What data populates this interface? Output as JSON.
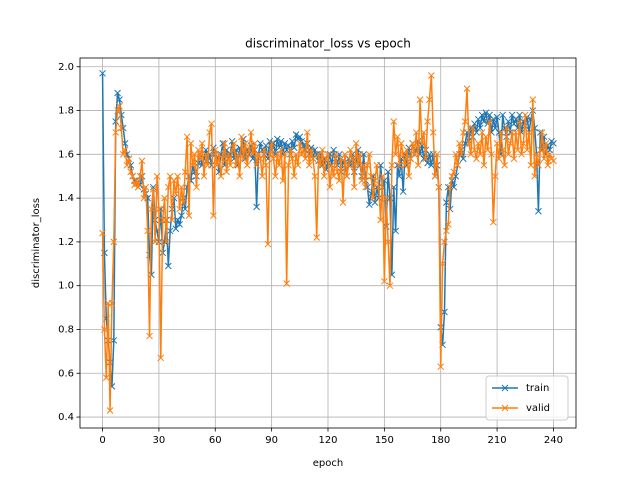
{
  "chart_data": {
    "type": "line",
    "title": "discriminator_loss vs epoch",
    "xlabel": "epoch",
    "ylabel": "discriminator_loss",
    "grid": true,
    "legend": "lower right",
    "marker": "x",
    "xlim": [
      -12,
      252
    ],
    "xticks": [
      0,
      30,
      60,
      90,
      120,
      150,
      180,
      210,
      240
    ],
    "ylim": [
      0.35,
      2.04
    ],
    "yticks": [
      0.4,
      0.6,
      0.8,
      {
        "value": 1,
        "label": "1.0"
      },
      1.2,
      1.4,
      1.6,
      1.8,
      {
        "value": 2,
        "label": "2.0"
      }
    ],
    "x": [
      0,
      1,
      2,
      3,
      4,
      5,
      6,
      7,
      8,
      9,
      10,
      11,
      12,
      13,
      14,
      15,
      16,
      17,
      18,
      19,
      20,
      21,
      22,
      23,
      24,
      25,
      26,
      27,
      28,
      29,
      30,
      31,
      32,
      33,
      34,
      35,
      36,
      37,
      38,
      39,
      40,
      41,
      42,
      43,
      44,
      45,
      46,
      47,
      48,
      49,
      50,
      51,
      52,
      53,
      54,
      55,
      56,
      57,
      58,
      59,
      60,
      61,
      62,
      63,
      64,
      65,
      66,
      67,
      68,
      69,
      70,
      71,
      72,
      73,
      74,
      75,
      76,
      77,
      78,
      79,
      80,
      81,
      82,
      83,
      84,
      85,
      86,
      87,
      88,
      89,
      90,
      91,
      92,
      93,
      94,
      95,
      96,
      97,
      98,
      99,
      100,
      101,
      102,
      103,
      104,
      105,
      106,
      107,
      108,
      109,
      110,
      111,
      112,
      113,
      114,
      115,
      116,
      117,
      118,
      119,
      120,
      121,
      122,
      123,
      124,
      125,
      126,
      127,
      128,
      129,
      130,
      131,
      132,
      133,
      134,
      135,
      136,
      137,
      138,
      139,
      140,
      141,
      142,
      143,
      144,
      145,
      146,
      147,
      148,
      149,
      150,
      151,
      152,
      153,
      154,
      155,
      156,
      157,
      158,
      159,
      160,
      161,
      162,
      163,
      164,
      165,
      166,
      167,
      168,
      169,
      170,
      171,
      172,
      173,
      174,
      175,
      176,
      177,
      178,
      179,
      180,
      181,
      182,
      183,
      184,
      185,
      186,
      187,
      188,
      189,
      190,
      191,
      192,
      193,
      194,
      195,
      196,
      197,
      198,
      199,
      200,
      201,
      202,
      203,
      204,
      205,
      206,
      207,
      208,
      209,
      210,
      211,
      212,
      213,
      214,
      215,
      216,
      217,
      218,
      219,
      220,
      221,
      222,
      223,
      224,
      225,
      226,
      227,
      228,
      229,
      230,
      231,
      232,
      233,
      234,
      235,
      236,
      237,
      238,
      239,
      240
    ],
    "series": [
      {
        "name": "train",
        "color": "#1f77b4",
        "values": [
          1.97,
          1.15,
          0.85,
          0.75,
          0.65,
          0.54,
          0.75,
          1.75,
          1.88,
          1.85,
          1.78,
          1.72,
          1.65,
          1.6,
          1.58,
          1.55,
          1.5,
          1.48,
          1.47,
          1.45,
          1.46,
          1.5,
          1.44,
          1.42,
          1.4,
          1.14,
          1.05,
          1.45,
          1.3,
          1.25,
          1.2,
          1.35,
          1.15,
          1.2,
          1.3,
          1.09,
          1.25,
          1.35,
          1.4,
          1.26,
          1.3,
          1.28,
          1.32,
          1.4,
          1.35,
          1.45,
          1.5,
          1.48,
          1.55,
          1.52,
          1.5,
          1.56,
          1.6,
          1.55,
          1.58,
          1.62,
          1.57,
          1.6,
          1.55,
          1.63,
          1.6,
          1.58,
          1.52,
          1.6,
          1.65,
          1.55,
          1.62,
          1.58,
          1.6,
          1.66,
          1.58,
          1.62,
          1.55,
          1.63,
          1.6,
          1.67,
          1.58,
          1.62,
          1.6,
          1.64,
          1.58,
          1.62,
          1.36,
          1.6,
          1.65,
          1.62,
          1.6,
          1.64,
          1.58,
          1.66,
          1.62,
          1.65,
          1.6,
          1.67,
          1.63,
          1.66,
          1.6,
          1.65,
          1.62,
          1.64,
          1.6,
          1.66,
          1.63,
          1.69,
          1.67,
          1.68,
          1.66,
          1.64,
          1.62,
          1.65,
          1.6,
          1.63,
          1.58,
          1.62,
          1.6,
          1.57,
          1.6,
          1.55,
          1.58,
          1.53,
          1.56,
          1.6,
          1.55,
          1.62,
          1.58,
          1.55,
          1.6,
          1.52,
          1.57,
          1.55,
          1.5,
          1.58,
          1.55,
          1.6,
          1.52,
          1.57,
          1.62,
          1.55,
          1.5,
          1.6,
          1.48,
          1.45,
          1.37,
          1.42,
          1.5,
          1.38,
          1.45,
          1.4,
          1.55,
          1.45,
          1.48,
          1.27,
          1.52,
          1.4,
          1.05,
          1.45,
          1.25,
          1.55,
          1.5,
          1.58,
          1.43,
          1.6,
          1.55,
          1.63,
          1.58,
          1.65,
          1.6,
          1.62,
          1.66,
          1.6,
          1.64,
          1.58,
          1.62,
          1.56,
          1.6,
          1.55,
          1.6,
          1.5,
          1.55,
          1.45,
          0.81,
          0.73,
          0.88,
          1.38,
          1.45,
          1.35,
          1.48,
          1.45,
          1.5,
          1.55,
          1.6,
          1.62,
          1.58,
          1.65,
          1.7,
          1.66,
          1.72,
          1.68,
          1.74,
          1.7,
          1.76,
          1.72,
          1.78,
          1.75,
          1.79,
          1.74,
          1.78,
          1.7,
          1.76,
          1.72,
          1.77,
          1.7,
          1.6,
          1.78,
          1.72,
          1.68,
          1.75,
          1.7,
          1.78,
          1.74,
          1.76,
          1.72,
          1.78,
          1.7,
          1.75,
          1.73,
          1.77,
          1.7,
          1.76,
          1.8,
          1.72,
          1.6,
          1.34,
          1.7,
          1.62,
          1.68,
          1.6,
          1.64,
          1.62,
          1.66,
          1.65
        ]
      },
      {
        "name": "valid",
        "color": "#ff7f0e",
        "values": [
          1.24,
          0.8,
          0.58,
          0.92,
          0.43,
          0.92,
          1.2,
          1.7,
          1.8,
          1.82,
          1.72,
          1.6,
          1.62,
          1.55,
          1.58,
          1.52,
          1.5,
          1.46,
          1.48,
          1.45,
          1.5,
          1.57,
          1.4,
          1.45,
          1.25,
          0.77,
          1.35,
          1.44,
          1.2,
          1.5,
          1.35,
          0.67,
          1.3,
          1.4,
          1.2,
          1.45,
          1.5,
          1.3,
          1.48,
          1.42,
          1.5,
          1.35,
          1.45,
          1.38,
          1.52,
          1.68,
          1.32,
          1.65,
          1.55,
          1.6,
          1.45,
          1.62,
          1.58,
          1.65,
          1.5,
          1.6,
          1.55,
          1.7,
          1.74,
          1.32,
          1.62,
          1.55,
          1.6,
          1.5,
          1.58,
          1.65,
          1.52,
          1.6,
          1.55,
          1.62,
          1.65,
          1.55,
          1.6,
          1.5,
          1.68,
          1.58,
          1.65,
          1.55,
          1.62,
          1.7,
          1.6,
          1.65,
          1.55,
          1.6,
          1.58,
          1.5,
          1.62,
          1.55,
          1.19,
          1.6,
          1.65,
          1.58,
          1.5,
          1.6,
          1.55,
          1.62,
          1.48,
          1.6,
          1.01,
          1.55,
          1.62,
          1.58,
          1.5,
          1.6,
          1.55,
          1.65,
          1.6,
          1.62,
          1.58,
          1.7,
          1.55,
          1.62,
          1.58,
          1.5,
          1.22,
          1.6,
          1.55,
          1.62,
          1.5,
          1.58,
          1.6,
          1.45,
          1.55,
          1.5,
          1.6,
          1.52,
          1.48,
          1.58,
          1.38,
          1.6,
          1.5,
          1.55,
          1.62,
          1.58,
          1.45,
          1.65,
          1.55,
          1.6,
          1.48,
          1.55,
          1.45,
          1.55,
          1.6,
          1.5,
          1.4,
          1.48,
          1.55,
          1.45,
          1.3,
          1.5,
          1.02,
          1.4,
          1.2,
          1.0,
          1.55,
          1.75,
          1.6,
          1.68,
          1.55,
          1.65,
          1.6,
          1.55,
          1.62,
          1.5,
          1.58,
          1.65,
          1.6,
          1.7,
          1.55,
          1.85,
          1.65,
          1.7,
          1.58,
          1.75,
          1.85,
          1.96,
          1.7,
          1.5,
          1.6,
          1.45,
          0.63,
          1.1,
          1.2,
          1.25,
          1.28,
          1.45,
          1.5,
          1.52,
          1.6,
          1.55,
          1.65,
          1.6,
          1.7,
          1.75,
          1.9,
          1.65,
          1.6,
          1.72,
          1.62,
          1.58,
          1.65,
          1.6,
          1.7,
          1.55,
          1.68,
          1.62,
          1.75,
          1.6,
          1.29,
          1.5,
          1.65,
          1.58,
          1.7,
          1.62,
          1.55,
          1.72,
          1.6,
          1.65,
          1.7,
          1.58,
          1.7,
          1.62,
          1.75,
          1.6,
          1.65,
          1.78,
          1.62,
          1.7,
          1.55,
          1.85,
          1.5,
          1.6,
          1.55,
          1.62,
          1.7,
          1.58,
          1.65,
          1.55,
          1.6,
          1.58,
          1.57
        ]
      }
    ]
  }
}
